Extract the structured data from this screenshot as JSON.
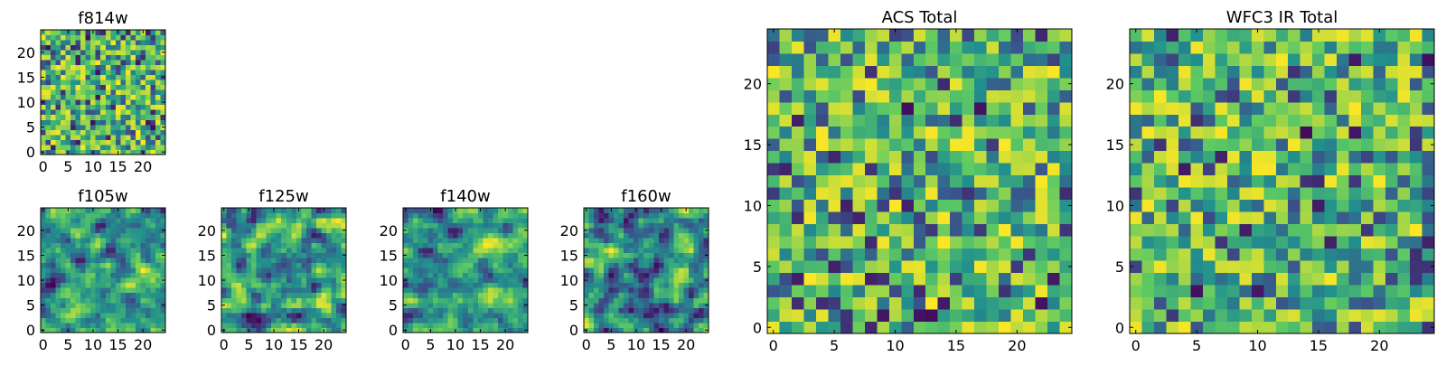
{
  "figure_title": "",
  "colormap": {
    "name": "viridis",
    "stops": [
      "#440154",
      "#3b528b",
      "#21908d",
      "#5dc963",
      "#fde725"
    ]
  },
  "chart_data": [
    {
      "type": "heatmap",
      "title": "f814w",
      "grid": [
        25,
        25
      ],
      "xticks": [
        "0",
        "5",
        "10",
        "15",
        "20"
      ],
      "yticks": [
        "0",
        "5",
        "10",
        "15",
        "20"
      ],
      "xlim": [
        0,
        25
      ],
      "ylim": [
        0,
        25
      ],
      "seed": 814,
      "smooth": 0
    },
    {
      "type": "heatmap",
      "title": "f105w",
      "grid": [
        25,
        25
      ],
      "xticks": [
        "0",
        "5",
        "10",
        "15",
        "20"
      ],
      "yticks": [
        "0",
        "5",
        "10",
        "15",
        "20"
      ],
      "xlim": [
        0,
        25
      ],
      "ylim": [
        0,
        25
      ],
      "seed": 105,
      "smooth": 1
    },
    {
      "type": "heatmap",
      "title": "f125w",
      "grid": [
        25,
        25
      ],
      "xticks": [
        "0",
        "5",
        "10",
        "15",
        "20"
      ],
      "yticks": [
        "0",
        "5",
        "10",
        "15",
        "20"
      ],
      "xlim": [
        0,
        25
      ],
      "ylim": [
        0,
        25
      ],
      "seed": 125,
      "smooth": 1
    },
    {
      "type": "heatmap",
      "title": "f140w",
      "grid": [
        25,
        25
      ],
      "xticks": [
        "0",
        "5",
        "10",
        "15",
        "20"
      ],
      "yticks": [
        "0",
        "5",
        "10",
        "15",
        "20"
      ],
      "xlim": [
        0,
        25
      ],
      "ylim": [
        0,
        25
      ],
      "seed": 140,
      "smooth": 1
    },
    {
      "type": "heatmap",
      "title": "f160w",
      "grid": [
        25,
        25
      ],
      "xticks": [
        "0",
        "5",
        "10",
        "15",
        "20"
      ],
      "yticks": [
        "0",
        "5",
        "10",
        "15",
        "20"
      ],
      "xlim": [
        0,
        25
      ],
      "ylim": [
        0,
        25
      ],
      "seed": 160,
      "smooth": 1
    },
    {
      "type": "heatmap",
      "title": "ACS Total",
      "grid": [
        25,
        25
      ],
      "xticks": [
        "0",
        "5",
        "10",
        "15",
        "20"
      ],
      "yticks": [
        "0",
        "5",
        "10",
        "15",
        "20"
      ],
      "xlim": [
        0,
        25
      ],
      "ylim": [
        0,
        25
      ],
      "seed": 7001,
      "smooth": 0
    },
    {
      "type": "heatmap",
      "title": "WFC3 IR Total",
      "grid": [
        25,
        25
      ],
      "xticks": [
        "0",
        "5",
        "10",
        "15",
        "20"
      ],
      "yticks": [
        "0",
        "5",
        "10",
        "15",
        "20"
      ],
      "xlim": [
        0,
        25
      ],
      "ylim": [
        0,
        25
      ],
      "seed": 7002,
      "smooth": 0
    }
  ]
}
